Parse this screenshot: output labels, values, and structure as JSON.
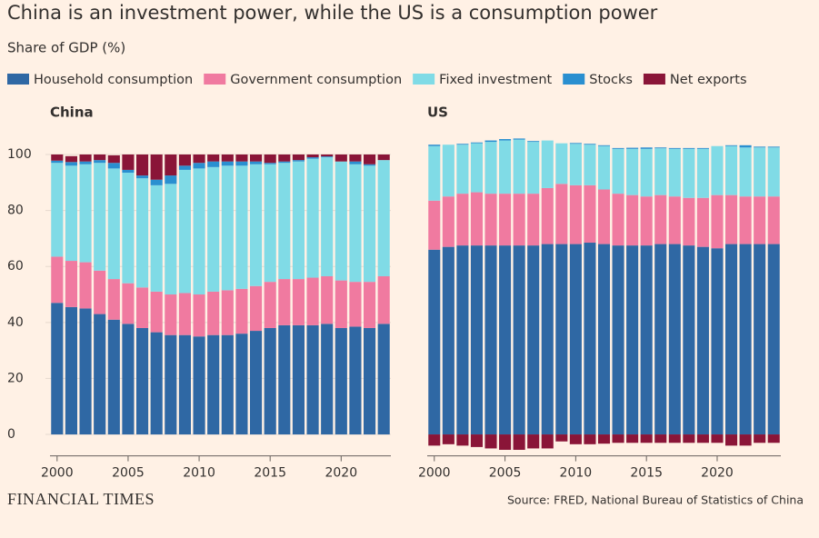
{
  "title": "China is an investment power, while the US is a consumption power",
  "subtitle": "Share of GDP (%)",
  "legend": [
    {
      "name": "Household consumption",
      "color": "#2f68a4"
    },
    {
      "name": "Government consumption",
      "color": "#f07aa0"
    },
    {
      "name": "Fixed investment",
      "color": "#80dbe6"
    },
    {
      "name": "Stocks",
      "color": "#2a8fd0"
    },
    {
      "name": "Net exports",
      "color": "#8a1538"
    }
  ],
  "source": "Source: FRED, National Bureau of Statistics of China",
  "logo": "FINANCIAL TIMES",
  "chart_data": [
    {
      "type": "bar",
      "title": "China",
      "x": [
        2000,
        2001,
        2002,
        2003,
        2004,
        2005,
        2006,
        2007,
        2008,
        2009,
        2010,
        2011,
        2012,
        2013,
        2014,
        2015,
        2016,
        2017,
        2018,
        2019,
        2020,
        2021,
        2022,
        2023
      ],
      "series": [
        {
          "values": [
            47,
            45.5,
            45,
            43,
            41,
            39.5,
            38,
            36.5,
            35.5,
            35.5,
            35,
            35.5,
            35.5,
            36,
            37,
            38,
            39,
            39,
            39,
            39.5,
            38,
            38.5,
            38,
            39.5
          ]
        },
        {
          "values": [
            16.5,
            16.5,
            16.5,
            15.5,
            14.5,
            14.5,
            14.5,
            14.5,
            14.5,
            15,
            15,
            15.5,
            16,
            16,
            16,
            16.5,
            16.5,
            16.5,
            17,
            17,
            17,
            16,
            16.5,
            17
          ]
        },
        {
          "values": [
            33.5,
            34,
            35,
            38.5,
            39.5,
            39.5,
            39,
            38,
            39.5,
            44,
            45,
            44.5,
            44.5,
            44,
            43.5,
            42,
            41.5,
            42,
            42.5,
            42.5,
            42.5,
            42,
            41.5,
            41.5
          ]
        },
        {
          "values": [
            0.8,
            1.3,
            1,
            1,
            2,
            1,
            1,
            2,
            3,
            1.5,
            2,
            2,
            1.5,
            1.5,
            1,
            0.5,
            0.5,
            0.5,
            0.5,
            0.3,
            0,
            1,
            0.5,
            0
          ]
        },
        {
          "values": [
            2.2,
            2.1,
            2.5,
            2,
            2.7,
            5.5,
            7.5,
            9,
            7.5,
            4,
            3,
            2.5,
            2.5,
            2.5,
            2.5,
            3,
            2.5,
            2,
            1,
            0.7,
            2.5,
            2.5,
            3.5,
            2
          ]
        }
      ],
      "xlim": [
        1999.5,
        2023.5
      ],
      "xticks": [
        2000,
        2005,
        2010,
        2015,
        2020
      ],
      "ylim": [
        -7,
        106
      ],
      "yticks": [
        0,
        20,
        40,
        60,
        80,
        100
      ],
      "grid": true
    },
    {
      "type": "bar",
      "title": "US",
      "x": [
        2000,
        2001,
        2002,
        2003,
        2004,
        2005,
        2006,
        2007,
        2008,
        2009,
        2010,
        2011,
        2012,
        2013,
        2014,
        2015,
        2016,
        2017,
        2018,
        2019,
        2020,
        2021,
        2022,
        2023,
        2024
      ],
      "series": [
        {
          "values": [
            66,
            67,
            67.5,
            67.5,
            67.5,
            67.5,
            67.5,
            67.5,
            68,
            68,
            68,
            68.5,
            68,
            67.5,
            67.5,
            67.5,
            68,
            68,
            67.5,
            67,
            66.5,
            68,
            68,
            68,
            68
          ]
        },
        {
          "values": [
            17.5,
            18,
            18.5,
            19,
            18.5,
            18.5,
            18.5,
            18.5,
            20,
            21.5,
            21,
            20.5,
            19.5,
            18.5,
            18,
            17.5,
            17.5,
            17,
            17,
            17.5,
            19,
            17.5,
            17,
            17,
            17
          ]
        },
        {
          "values": [
            19.5,
            18.5,
            17.5,
            17.5,
            18.5,
            19,
            19.3,
            18.5,
            17,
            14.5,
            14.8,
            14.5,
            15.5,
            16,
            16.5,
            17,
            16.7,
            17,
            17.5,
            17.5,
            17.5,
            17.5,
            17.5,
            17.5,
            17.5
          ]
        },
        {
          "values": [
            0.5,
            0,
            0.3,
            0.3,
            0.5,
            0.5,
            0.4,
            0.3,
            0,
            0,
            0.3,
            0.3,
            0.3,
            0.3,
            0.4,
            0.5,
            0.3,
            0.3,
            0.3,
            0.3,
            0,
            0.3,
            0.8,
            0.3,
            0.3
          ]
        },
        {
          "values": [
            -4,
            -3.5,
            -4,
            -4.5,
            -5,
            -5.5,
            -5.5,
            -5,
            -5,
            -2.5,
            -3.5,
            -3.5,
            -3.3,
            -3,
            -3,
            -3,
            -3,
            -3,
            -3,
            -3,
            -3,
            -4,
            -4,
            -3,
            -3
          ]
        }
      ],
      "xlim": [
        1999.5,
        2024.5
      ],
      "xticks": [
        2000,
        2005,
        2010,
        2015,
        2020
      ],
      "ylim": [
        -7,
        106
      ],
      "grid": false
    }
  ]
}
